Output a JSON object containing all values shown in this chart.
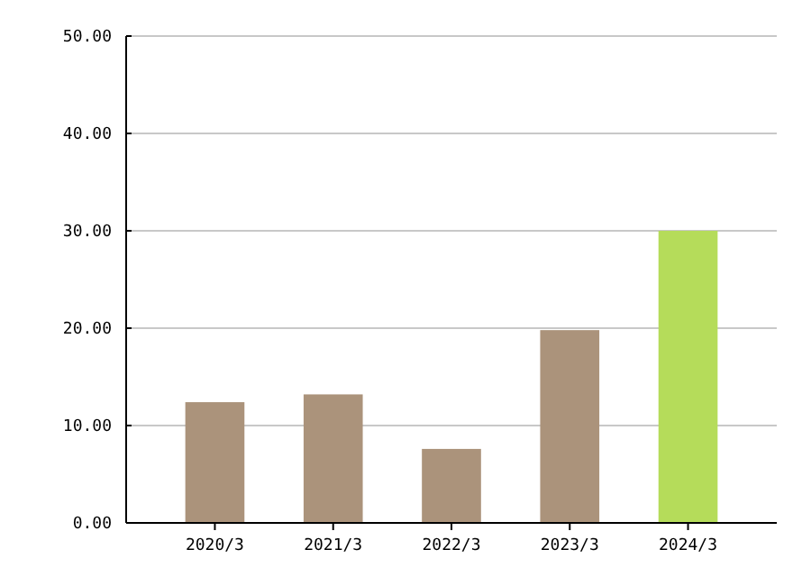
{
  "chart_data": {
    "type": "bar",
    "categories": [
      "2020/3",
      "2021/3",
      "2022/3",
      "2023/3",
      "2024/3"
    ],
    "values": [
      12.4,
      13.2,
      7.6,
      19.8,
      30.0
    ],
    "colors": [
      "#ab937b",
      "#ab937b",
      "#ab937b",
      "#ab937b",
      "#b5dc5a"
    ],
    "ylim": [
      0,
      50
    ],
    "yticks": [
      {
        "value": 0,
        "label": "0.00"
      },
      {
        "value": 10,
        "label": "10.00"
      },
      {
        "value": 20,
        "label": "20.00"
      },
      {
        "value": 30,
        "label": "30.00"
      },
      {
        "value": 40,
        "label": "40.00"
      },
      {
        "value": 50,
        "label": "50.00"
      }
    ],
    "grid": "y"
  }
}
